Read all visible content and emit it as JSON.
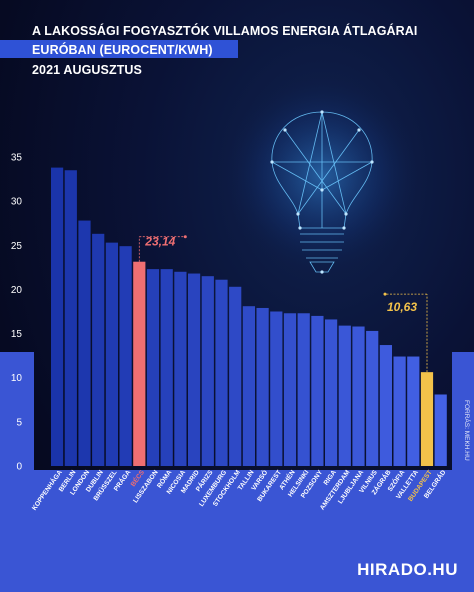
{
  "header": {
    "line1": "A LAKOSSÁGI FOGYASZTÓK VILLAMOS ENERGIA ÁTLAGÁRAI",
    "line2": "EURÓBAN (EUROCENT/KWH)",
    "line3": "2021 AUGUSZTUS"
  },
  "source": "FORRÁS: MEKH.HU",
  "logo": "HIRADO.HU",
  "colors": {
    "bar_default": "#2a4fd8",
    "bar_top": "#1a2fa8",
    "highlight_becs": "#ef6f72",
    "highlight_budapest": "#f3c24a",
    "axis_text": "#ffffff"
  },
  "chart_data": {
    "type": "bar",
    "title": "A LAKOSSÁGI FOGYASZTÓK VILLAMOS ENERGIA ÁTLAGÁRAI EURÓBAN (EUROCENT/KWH) 2021 AUGUSZTUS",
    "xlabel": "",
    "ylabel": "",
    "ylim": [
      0,
      35
    ],
    "yticks": [
      0,
      5,
      10,
      15,
      20,
      25,
      30,
      35
    ],
    "grid": false,
    "categories": [
      "KOPPENHÁGA",
      "BERLIN",
      "LONDON",
      "DUBLIN",
      "BRÜSSZEL",
      "PRÁGA",
      "BÉCS",
      "LISSZABON",
      "RÓMA",
      "NICOSIA",
      "MADRID",
      "PÁRIZS",
      "LUXEMBURG",
      "STOCKHOLM",
      "TALLIN",
      "VARSÓ",
      "BUKAREST",
      "ATHÉN",
      "HELSINKI",
      "POZSONY",
      "RIGA",
      "AMSZTERDAM",
      "LJUBLJANA",
      "VILNIUS",
      "ZÁGRÁB",
      "SZÓFIA",
      "VALLETTA",
      "BUDAPEST",
      "BELGRÁD"
    ],
    "values": [
      33.8,
      33.5,
      27.8,
      26.3,
      25.3,
      24.9,
      23.14,
      22.3,
      22.3,
      22.0,
      21.8,
      21.5,
      21.1,
      20.3,
      18.1,
      17.9,
      17.5,
      17.3,
      17.3,
      17.0,
      16.6,
      15.9,
      15.8,
      15.3,
      13.7,
      12.4,
      12.4,
      10.63,
      8.1
    ],
    "highlights": [
      {
        "category": "BÉCS",
        "label": "23,14",
        "color": "#ef6f72"
      },
      {
        "category": "BUDAPEST",
        "label": "10,63",
        "color": "#f3c24a"
      }
    ]
  }
}
